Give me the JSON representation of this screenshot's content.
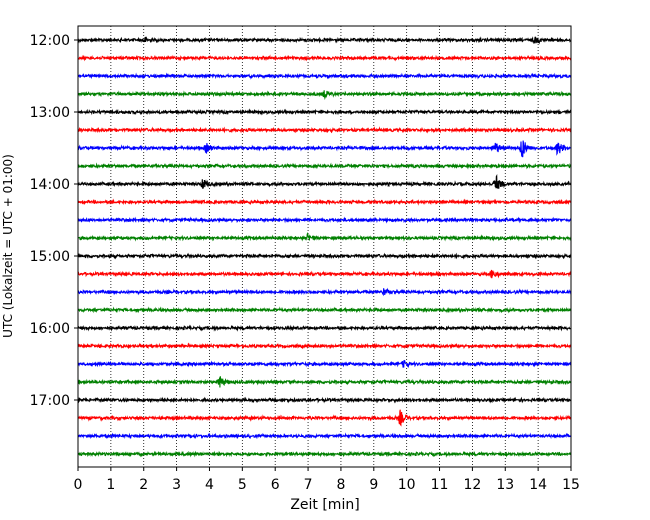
{
  "chart_data": {
    "type": "line",
    "title": "",
    "xlabel": "Zeit  [min]",
    "ylabel": "UTC (Lokalzeit = UTC + 01:00)",
    "xlim": [
      0,
      15
    ],
    "x_ticks": [
      "0",
      "1",
      "2",
      "3",
      "4",
      "5",
      "6",
      "7",
      "8",
      "9",
      "10",
      "11",
      "12",
      "13",
      "14",
      "15"
    ],
    "grid": "vertical dotted lines at each minute",
    "trace_interval_minutes": 15,
    "y_tick_labels": [
      "12:00",
      "13:00",
      "14:00",
      "15:00",
      "16:00",
      "17:00"
    ],
    "trace_color_cycle": [
      "#000000",
      "#ff0000",
      "#0000ff",
      "#008000"
    ],
    "traces": [
      {
        "start": "12:00",
        "color": "#000000",
        "events": [
          {
            "t": 2.0,
            "amp": 0.35
          },
          {
            "t": 13.9,
            "amp": 0.35
          }
        ]
      },
      {
        "start": "12:15",
        "color": "#ff0000",
        "events": []
      },
      {
        "start": "12:30",
        "color": "#0000ff",
        "events": []
      },
      {
        "start": "12:45",
        "color": "#008000",
        "events": [
          {
            "t": 7.5,
            "amp": 0.4
          }
        ]
      },
      {
        "start": "13:00",
        "color": "#000000",
        "events": []
      },
      {
        "start": "13:15",
        "color": "#ff0000",
        "events": []
      },
      {
        "start": "13:30",
        "color": "#0000ff",
        "events": [
          {
            "t": 3.9,
            "amp": 0.5
          },
          {
            "t": 12.7,
            "amp": 0.6
          },
          {
            "t": 13.5,
            "amp": 1.3
          },
          {
            "t": 14.6,
            "amp": 0.8
          }
        ]
      },
      {
        "start": "13:45",
        "color": "#008000",
        "events": []
      },
      {
        "start": "14:00",
        "color": "#000000",
        "events": [
          {
            "t": 3.8,
            "amp": 0.5
          },
          {
            "t": 12.7,
            "amp": 1.0
          }
        ]
      },
      {
        "start": "14:15",
        "color": "#ff0000",
        "events": []
      },
      {
        "start": "14:30",
        "color": "#0000ff",
        "events": []
      },
      {
        "start": "14:45",
        "color": "#008000",
        "events": [
          {
            "t": 7.0,
            "amp": 0.4
          }
        ]
      },
      {
        "start": "15:00",
        "color": "#000000",
        "events": []
      },
      {
        "start": "15:15",
        "color": "#ff0000",
        "events": [
          {
            "t": 12.6,
            "amp": 0.5
          }
        ]
      },
      {
        "start": "15:30",
        "color": "#0000ff",
        "events": [
          {
            "t": 9.3,
            "amp": 0.35
          }
        ]
      },
      {
        "start": "15:45",
        "color": "#008000",
        "events": []
      },
      {
        "start": "16:00",
        "color": "#000000",
        "events": []
      },
      {
        "start": "16:15",
        "color": "#ff0000",
        "events": []
      },
      {
        "start": "16:30",
        "color": "#0000ff",
        "events": [
          {
            "t": 9.9,
            "amp": 0.35
          }
        ]
      },
      {
        "start": "16:45",
        "color": "#008000",
        "events": [
          {
            "t": 4.3,
            "amp": 0.7
          }
        ]
      },
      {
        "start": "17:00",
        "color": "#000000",
        "events": []
      },
      {
        "start": "17:15",
        "color": "#ff0000",
        "events": [
          {
            "t": 9.8,
            "amp": 0.8
          }
        ]
      },
      {
        "start": "17:30",
        "color": "#0000ff",
        "events": []
      },
      {
        "start": "17:45",
        "color": "#008000",
        "events": []
      }
    ]
  }
}
